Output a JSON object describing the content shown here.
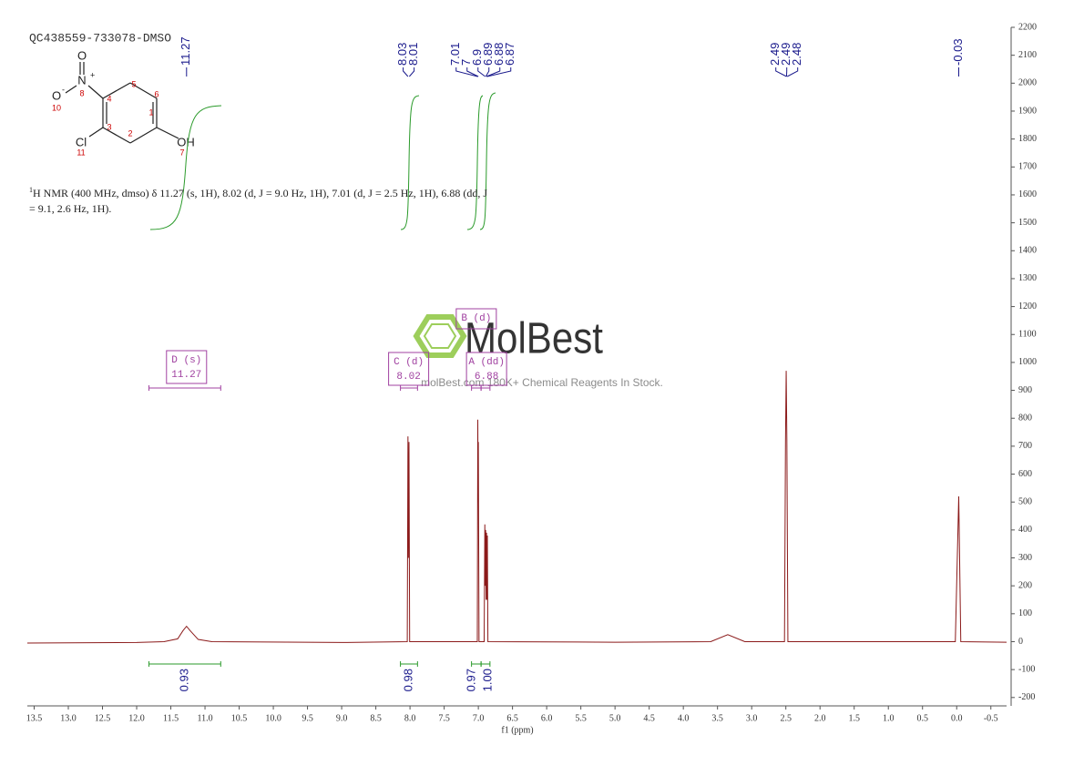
{
  "chart_data": {
    "type": "line",
    "title": "QC438559-733078-DMSO",
    "xlabel": "f1 (ppm)",
    "xlim": [
      13.6,
      -0.73
    ],
    "ylim": [
      -230,
      2200
    ],
    "xticks": [
      13.5,
      {
        "value": 13,
        "label": "13.0"
      },
      12.5,
      {
        "value": 12,
        "label": "12.0"
      },
      11.5,
      {
        "value": 11,
        "label": "11.0"
      },
      10.5,
      {
        "value": 10,
        "label": "10.0"
      },
      9.5,
      {
        "value": 9,
        "label": "9.0"
      },
      8.5,
      {
        "value": 8,
        "label": "8.0"
      },
      7.5,
      {
        "value": 7,
        "label": "7.0"
      },
      6.5,
      {
        "value": 6,
        "label": "6.0"
      },
      5.5,
      {
        "value": 5,
        "label": "5.0"
      },
      4.5,
      {
        "value": 4,
        "label": "4.0"
      },
      3.5,
      {
        "value": 3,
        "label": "3.0"
      },
      2.5,
      {
        "value": 2,
        "label": "2.0"
      },
      1.5,
      {
        "value": 1,
        "label": "1.0"
      },
      0.5,
      {
        "value": 0,
        "label": "0.0"
      },
      -0.5
    ],
    "yticks": [
      -200,
      -100,
      0,
      100,
      200,
      300,
      400,
      500,
      600,
      700,
      800,
      900,
      1000,
      1100,
      1200,
      1300,
      1400,
      1500,
      1600,
      1700,
      1800,
      1900,
      2000,
      2100,
      2200
    ],
    "x": [
      13.6,
      12.0,
      11.6,
      11.4,
      11.32,
      11.27,
      11.22,
      11.1,
      10.9,
      9.0,
      8.04,
      8.03,
      8.024,
      8.015,
      8.005,
      7.015,
      7.008,
      7.004,
      7.0,
      6.99,
      6.915,
      6.905,
      6.898,
      6.893,
      6.886,
      6.88,
      6.874,
      6.868,
      6.86,
      5.0,
      3.6,
      3.35,
      3.1,
      2.52,
      2.505,
      2.495,
      2.485,
      2.47,
      0.02,
      -0.03,
      -0.06,
      -0.73
    ],
    "series": [
      {
        "color": "#8b1a1a",
        "values": [
          -5,
          -3,
          0,
          10,
          40,
          55,
          40,
          8,
          0,
          -3,
          0,
          735,
          300,
          715,
          0,
          0,
          795,
          500,
          715,
          0,
          0,
          420,
          200,
          400,
          150,
          390,
          150,
          380,
          0,
          -2,
          0,
          25,
          0,
          0,
          720,
          970,
          720,
          0,
          0,
          520,
          0,
          -2
        ]
      }
    ],
    "peak_labels": [
      11.27,
      8.03,
      8.01,
      7.01,
      7.0,
      6.9,
      6.89,
      6.88,
      6.87,
      2.49,
      2.49,
      2.48,
      -0.03
    ],
    "multiplets": [
      {
        "name": "D (s)",
        "shift": 11.27,
        "range": [
          11.82,
          10.77
        ]
      },
      {
        "name": "C (d)",
        "shift": 8.02,
        "range": [
          8.14,
          7.89
        ]
      },
      {
        "name": "B (d)",
        "range": [
          7.1,
          6.96
        ]
      },
      {
        "name": "A (dd)",
        "shift": 6.88,
        "range": [
          6.96,
          6.83
        ]
      }
    ],
    "integrals": {
      "values": [
        0.93,
        0.98,
        0.97,
        1.0
      ],
      "value_labels": [
        "0.93",
        "0.98",
        "0.97",
        "1.00"
      ],
      "ranges": [
        [
          11.82,
          10.77
        ],
        [
          8.14,
          7.89
        ],
        [
          7.1,
          6.96
        ],
        [
          6.96,
          6.83
        ]
      ]
    },
    "description": {
      "sup": "1",
      "lines": [
        "H NMR (400 MHz, dmso) δ 11.27 (s, 1H), 8.02 (d, J = 9.0 Hz, 1H), 7.01 (d, J = 2.5 Hz, 1H), 6.88 (dd, J",
        "= 9.1, 2.6 Hz, 1H)."
      ]
    },
    "watermark": {
      "brand": "MolBest",
      "tagline": "molBest.com 180K+ Chemical Reagents In Stock."
    }
  },
  "structure": {
    "atoms": [
      "O",
      "N",
      "+",
      "O",
      "-",
      "Cl",
      "OH"
    ],
    "numbers": [
      "1",
      "2",
      "3",
      "4",
      "5",
      "6",
      "7",
      "8",
      "10",
      "11"
    ]
  }
}
